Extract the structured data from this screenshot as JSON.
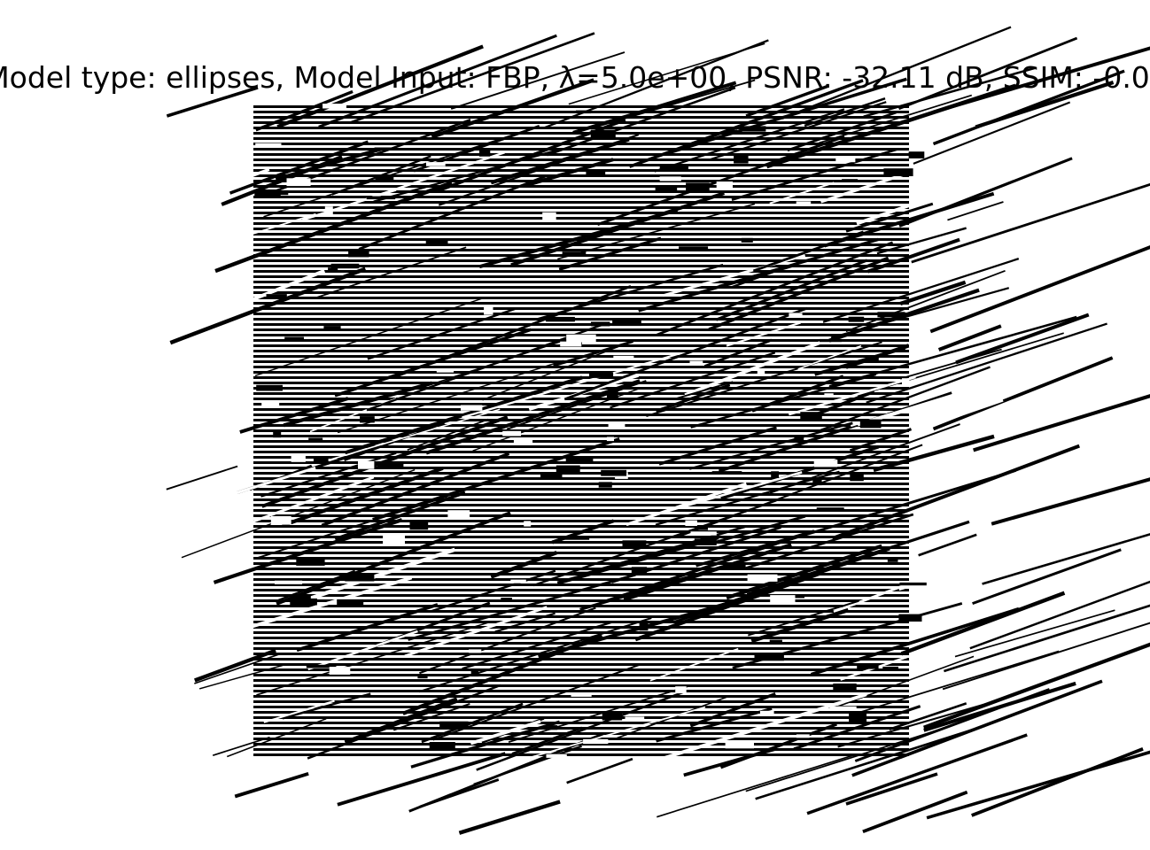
{
  "figure": {
    "title": "Model type: ellipses, Model Input: FBP, λ=5.0e+00, PSNR: -32.11 dB, SSIM: -0.0"
  },
  "image": {
    "description_kind": "binary-reconstruction",
    "colors": {
      "background": "#ffffff",
      "pixel_dark": "#000000",
      "pixel_light": "#ffffff"
    }
  }
}
